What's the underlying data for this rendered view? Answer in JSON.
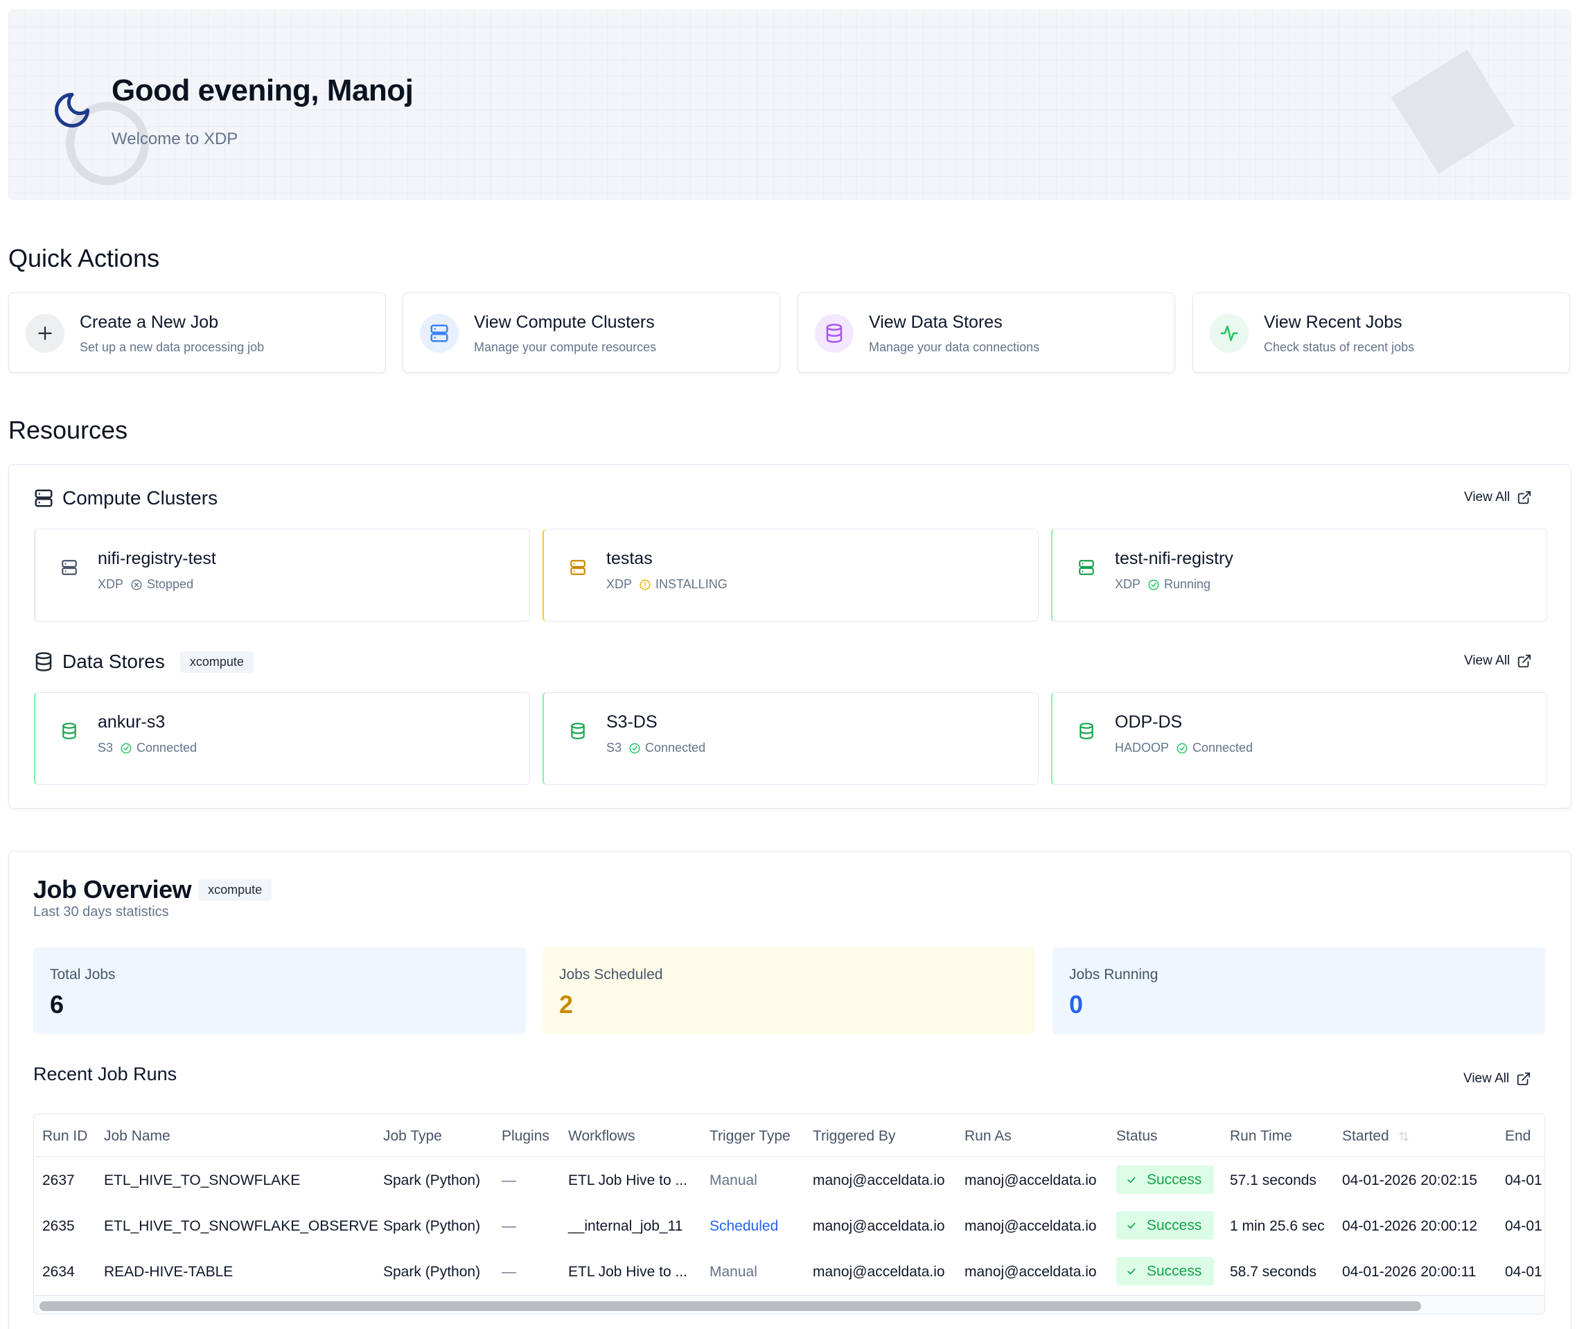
{
  "hero": {
    "greeting": "Good evening, Manoj",
    "welcome": "Welcome to XDP"
  },
  "quick_actions": {
    "title": "Quick Actions",
    "items": [
      {
        "title": "Create a New Job",
        "subtitle": "Set up a new data processing job",
        "icon": "plus-icon"
      },
      {
        "title": "View Compute Clusters",
        "subtitle": "Manage your compute resources",
        "icon": "server-icon"
      },
      {
        "title": "View Data Stores",
        "subtitle": "Manage your data connections",
        "icon": "database-icon"
      },
      {
        "title": "View Recent Jobs",
        "subtitle": "Check status of recent jobs",
        "icon": "activity-icon"
      }
    ]
  },
  "resources": {
    "title": "Resources",
    "compute": {
      "title": "Compute Clusters",
      "view_all": "View All",
      "items": [
        {
          "name": "nifi-registry-test",
          "type": "XDP",
          "status": "Stopped",
          "color": "#64748b"
        },
        {
          "name": "testas",
          "type": "XDP",
          "status": "INSTALLING",
          "color": "#ca8a04"
        },
        {
          "name": "test-nifi-registry",
          "type": "XDP",
          "status": "Running",
          "color": "#16a34a"
        }
      ]
    },
    "datastores": {
      "title": "Data Stores",
      "badge": "xcompute",
      "view_all": "View All",
      "items": [
        {
          "name": "ankur-s3",
          "type": "S3",
          "status": "Connected",
          "color": "#16a34a"
        },
        {
          "name": "S3-DS",
          "type": "S3",
          "status": "Connected",
          "color": "#16a34a"
        },
        {
          "name": "ODP-DS",
          "type": "HADOOP",
          "status": "Connected",
          "color": "#16a34a"
        }
      ]
    }
  },
  "job_overview": {
    "title": "Job Overview",
    "badge": "xcompute",
    "subtitle": "Last 30 days statistics",
    "stats": [
      {
        "label": "Total Jobs",
        "value": "6",
        "color": "#0b1220",
        "bg": "#eff6ff"
      },
      {
        "label": "Jobs Scheduled",
        "value": "2",
        "color": "#ca8a04",
        "bg": "#fefce8"
      },
      {
        "label": "Jobs Running",
        "value": "0",
        "color": "#2563eb",
        "bg": "#eff6ff"
      }
    ],
    "recent": {
      "title": "Recent Job Runs",
      "view_all": "View All",
      "columns": [
        "Run ID",
        "Job Name",
        "Job Type",
        "Plugins",
        "Workflows",
        "Trigger Type",
        "Triggered By",
        "Run As",
        "Status",
        "Run Time",
        "Started",
        "End"
      ],
      "rows": [
        [
          "2637",
          "ETL_HIVE_TO_SNOWFLAKE",
          "Spark (Python)",
          "—",
          "ETL Job Hive to ...",
          "Manual",
          "manoj@acceldata.io",
          "manoj@acceldata.io",
          "Success",
          "57.1 seconds",
          "04-01-2026 20:02:15",
          "04-01"
        ],
        [
          "2635",
          "ETL_HIVE_TO_SNOWFLAKE_OBSERVE",
          "Spark (Python)",
          "—",
          "__internal_job_11",
          "Scheduled",
          "manoj@acceldata.io",
          "manoj@acceldata.io",
          "Success",
          "1 min 25.6 sec",
          "04-01-2026 20:00:12",
          "04-01"
        ],
        [
          "2634",
          "READ-HIVE-TABLE",
          "Spark (Python)",
          "—",
          "ETL Job Hive to ...",
          "Manual",
          "manoj@acceldata.io",
          "manoj@acceldata.io",
          "Success",
          "58.7 seconds",
          "04-01-2026 20:00:11",
          "04-01"
        ]
      ]
    }
  }
}
